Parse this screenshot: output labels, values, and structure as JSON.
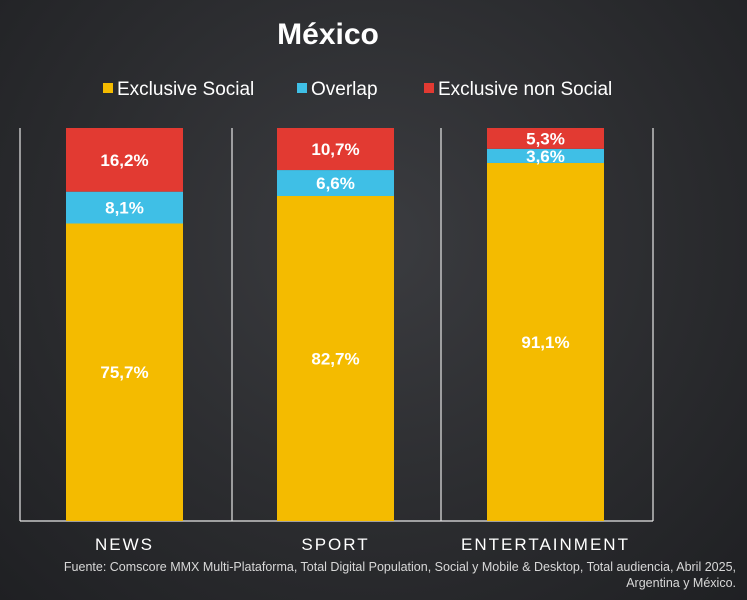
{
  "chart_data": {
    "type": "bar",
    "stacked": true,
    "title": "México",
    "categories": [
      "NEWS",
      "SPORT",
      "ENTERTAINMENT"
    ],
    "series": [
      {
        "name": "Exclusive Social",
        "color": "#f4bb00",
        "values": [
          75.7,
          82.7,
          91.1
        ],
        "labels": [
          "75,7%",
          "82,7%",
          "91,1%"
        ]
      },
      {
        "name": "Overlap",
        "color": "#3fbfe6",
        "values": [
          8.1,
          6.6,
          3.6
        ],
        "labels": [
          "8,1%",
          "6,6%",
          "3,6%"
        ]
      },
      {
        "name": "Exclusive non Social",
        "color": "#e23a32",
        "values": [
          16.2,
          10.7,
          5.3
        ],
        "labels": [
          "16,2%",
          "10,7%",
          "5,3%"
        ]
      }
    ],
    "ylim": [
      0,
      100
    ],
    "grid": false,
    "legend_position": "top"
  },
  "source_lines": [
    "Fuente: Comscore MMX Multi-Plataforma, Total Digital Population, Social y Mobile & Desktop, Total audiencia, Abril 2025,",
    "Argentina y México."
  ]
}
